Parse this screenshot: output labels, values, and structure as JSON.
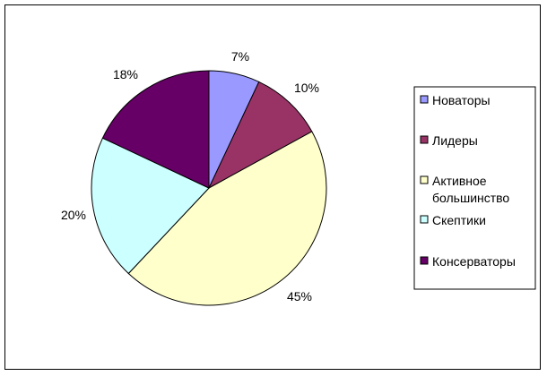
{
  "chart_data": {
    "type": "pie",
    "slices": [
      {
        "label": "Новаторы",
        "value": 7,
        "value_label": "7%",
        "color": "#9999ff"
      },
      {
        "label": "Лидеры",
        "value": 10,
        "value_label": "10%",
        "color": "#993366"
      },
      {
        "label": "Активное большинство",
        "label_lines": [
          "Активное",
          "большинство"
        ],
        "value": 45,
        "value_label": "45%",
        "color": "#ffffcc"
      },
      {
        "label": "Скептики",
        "value": 20,
        "value_label": "20%",
        "color": "#ccffff"
      },
      {
        "label": "Консерваторы",
        "value": 18,
        "value_label": "18%",
        "color": "#660066"
      }
    ],
    "legend_position": "right",
    "start": "12 o'clock",
    "direction": "clockwise"
  }
}
